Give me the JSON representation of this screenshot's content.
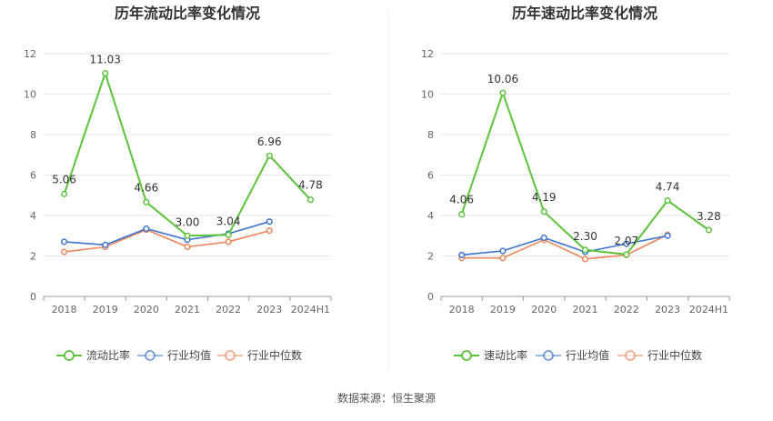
{
  "source": "数据来源：恒生聚源",
  "chart_data": [
    {
      "type": "line",
      "title": "历年流动比率变化情况",
      "categories": [
        "2018",
        "2019",
        "2020",
        "2021",
        "2022",
        "2023",
        "2024H1"
      ],
      "ylim": [
        0,
        12
      ],
      "yticks": [
        0,
        2,
        4,
        6,
        8,
        10,
        12
      ],
      "grid": true,
      "legend_position": "bottom",
      "series": [
        {
          "name": "流动比率",
          "color": "#5cc43a",
          "values": [
            5.06,
            11.03,
            4.66,
            3.0,
            3.04,
            6.96,
            4.78
          ],
          "labels": [
            "5.06",
            "11.03",
            "4.66",
            "3.00",
            "3.04",
            "6.96",
            "4.78"
          ]
        },
        {
          "name": "行业均值",
          "color": "#3e75d4",
          "values": [
            2.7,
            2.55,
            3.35,
            2.8,
            3.1,
            3.7,
            null
          ]
        },
        {
          "name": "行业中位数",
          "color": "#f0855a",
          "values": [
            2.2,
            2.45,
            3.3,
            2.45,
            2.7,
            3.25,
            null
          ]
        }
      ]
    },
    {
      "type": "line",
      "title": "历年速动比率变化情况",
      "categories": [
        "2018",
        "2019",
        "2020",
        "2021",
        "2022",
        "2023",
        "2024H1"
      ],
      "ylim": [
        0,
        12
      ],
      "yticks": [
        0,
        2,
        4,
        6,
        8,
        10,
        12
      ],
      "grid": true,
      "legend_position": "bottom",
      "series": [
        {
          "name": "速动比率",
          "color": "#5cc43a",
          "values": [
            4.06,
            10.06,
            4.19,
            2.3,
            2.07,
            4.74,
            3.28
          ],
          "labels": [
            "4.06",
            "10.06",
            "4.19",
            "2.30",
            "2.07",
            "4.74",
            "3.28"
          ]
        },
        {
          "name": "行业均值",
          "color": "#3e75d4",
          "values": [
            2.05,
            2.25,
            2.9,
            2.2,
            2.6,
            3.0,
            null
          ]
        },
        {
          "name": "行业中位数",
          "color": "#f0855a",
          "values": [
            1.9,
            1.9,
            2.8,
            1.85,
            2.05,
            3.05,
            null
          ]
        }
      ]
    }
  ]
}
